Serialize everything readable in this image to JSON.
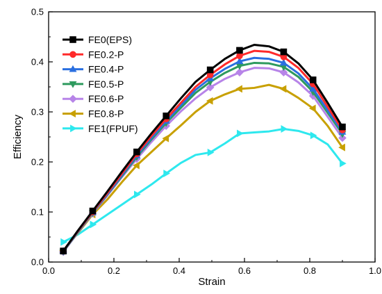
{
  "chart_data": {
    "type": "line",
    "xlabel": "Strain",
    "ylabel": "Efficiency",
    "xlim": [
      0.0,
      1.0
    ],
    "ylim": [
      0.0,
      0.5
    ],
    "xticks": [
      "0.0",
      "0.2",
      "0.4",
      "0.6",
      "0.8",
      "1.0"
    ],
    "yticks": [
      "0.0",
      "0.1",
      "0.2",
      "0.3",
      "0.4",
      "0.5"
    ],
    "grid": false,
    "legend_position": "top-left",
    "series": [
      {
        "name": "FE0(EPS)",
        "color": "#000000",
        "marker": "square",
        "x": [
          0.045,
          0.09,
          0.135,
          0.18,
          0.225,
          0.27,
          0.315,
          0.36,
          0.405,
          0.45,
          0.495,
          0.54,
          0.585,
          0.63,
          0.675,
          0.72,
          0.765,
          0.81,
          0.855,
          0.9
        ],
        "y": [
          0.022,
          0.063,
          0.102,
          0.141,
          0.181,
          0.22,
          0.257,
          0.292,
          0.327,
          0.36,
          0.384,
          0.406,
          0.423,
          0.434,
          0.431,
          0.42,
          0.397,
          0.364,
          0.318,
          0.27
        ],
        "marker_idx": [
          0,
          2,
          5,
          7,
          10,
          12,
          15,
          17,
          19
        ]
      },
      {
        "name": "FE0.2-P",
        "color": "#ff2a2a",
        "marker": "circle",
        "x": [
          0.045,
          0.09,
          0.135,
          0.18,
          0.225,
          0.27,
          0.315,
          0.36,
          0.405,
          0.45,
          0.495,
          0.54,
          0.585,
          0.63,
          0.675,
          0.72,
          0.765,
          0.81,
          0.855,
          0.9
        ],
        "y": [
          0.022,
          0.062,
          0.1,
          0.138,
          0.177,
          0.216,
          0.252,
          0.286,
          0.318,
          0.35,
          0.374,
          0.395,
          0.412,
          0.422,
          0.42,
          0.41,
          0.388,
          0.356,
          0.31,
          0.264
        ],
        "marker_idx": [
          0,
          2,
          5,
          7,
          10,
          12,
          15,
          17,
          19
        ]
      },
      {
        "name": "FE0.4-P",
        "color": "#2a6fe0",
        "marker": "triangle-up",
        "x": [
          0.045,
          0.09,
          0.135,
          0.18,
          0.225,
          0.27,
          0.315,
          0.36,
          0.405,
          0.45,
          0.495,
          0.54,
          0.585,
          0.63,
          0.675,
          0.72,
          0.765,
          0.81,
          0.855,
          0.9
        ],
        "y": [
          0.022,
          0.061,
          0.099,
          0.136,
          0.174,
          0.213,
          0.248,
          0.282,
          0.313,
          0.344,
          0.367,
          0.386,
          0.401,
          0.408,
          0.406,
          0.398,
          0.377,
          0.346,
          0.303,
          0.26
        ],
        "marker_idx": [
          0,
          2,
          5,
          7,
          10,
          12,
          15,
          17,
          19
        ]
      },
      {
        "name": "FE0.5-P",
        "color": "#2e9a5e",
        "marker": "triangle-down",
        "x": [
          0.045,
          0.09,
          0.135,
          0.18,
          0.225,
          0.27,
          0.315,
          0.36,
          0.405,
          0.45,
          0.495,
          0.54,
          0.585,
          0.63,
          0.675,
          0.72,
          0.765,
          0.81,
          0.855,
          0.9
        ],
        "y": [
          0.021,
          0.06,
          0.098,
          0.135,
          0.172,
          0.21,
          0.245,
          0.278,
          0.308,
          0.338,
          0.36,
          0.378,
          0.392,
          0.398,
          0.397,
          0.39,
          0.37,
          0.34,
          0.298,
          0.256
        ],
        "marker_idx": [
          0,
          2,
          5,
          7,
          10,
          12,
          15,
          17,
          19
        ]
      },
      {
        "name": "FE0.6-P",
        "color": "#b784e8",
        "marker": "diamond",
        "x": [
          0.045,
          0.09,
          0.135,
          0.18,
          0.225,
          0.27,
          0.315,
          0.36,
          0.405,
          0.45,
          0.495,
          0.54,
          0.585,
          0.63,
          0.675,
          0.72,
          0.765,
          0.81,
          0.855,
          0.9
        ],
        "y": [
          0.02,
          0.059,
          0.097,
          0.133,
          0.17,
          0.206,
          0.24,
          0.272,
          0.301,
          0.327,
          0.349,
          0.366,
          0.379,
          0.388,
          0.387,
          0.379,
          0.359,
          0.332,
          0.29,
          0.248
        ],
        "marker_idx": [
          0,
          2,
          5,
          7,
          10,
          12,
          15,
          17,
          19
        ]
      },
      {
        "name": "FE0.8-P",
        "color": "#c8a000",
        "marker": "triangle-left",
        "x": [
          0.045,
          0.09,
          0.135,
          0.18,
          0.225,
          0.27,
          0.315,
          0.36,
          0.405,
          0.45,
          0.495,
          0.54,
          0.585,
          0.63,
          0.675,
          0.72,
          0.765,
          0.81,
          0.855,
          0.9
        ],
        "y": [
          0.023,
          0.058,
          0.095,
          0.125,
          0.16,
          0.193,
          0.22,
          0.247,
          0.273,
          0.3,
          0.322,
          0.335,
          0.346,
          0.348,
          0.354,
          0.346,
          0.328,
          0.307,
          0.272,
          0.229
        ],
        "marker_idx": [
          0,
          2,
          5,
          7,
          10,
          12,
          15,
          17,
          19
        ]
      },
      {
        "name": "FE1(FPUF)",
        "color": "#2ee8ee",
        "marker": "triangle-right",
        "x": [
          0.045,
          0.09,
          0.135,
          0.18,
          0.225,
          0.27,
          0.315,
          0.36,
          0.405,
          0.45,
          0.495,
          0.54,
          0.585,
          0.63,
          0.675,
          0.72,
          0.765,
          0.81,
          0.855,
          0.9
        ],
        "y": [
          0.04,
          0.055,
          0.075,
          0.095,
          0.115,
          0.135,
          0.155,
          0.177,
          0.198,
          0.214,
          0.219,
          0.237,
          0.257,
          0.259,
          0.261,
          0.266,
          0.262,
          0.253,
          0.235,
          0.197
        ],
        "marker_idx": [
          0,
          2,
          5,
          7,
          10,
          12,
          15,
          17,
          19
        ]
      }
    ]
  }
}
